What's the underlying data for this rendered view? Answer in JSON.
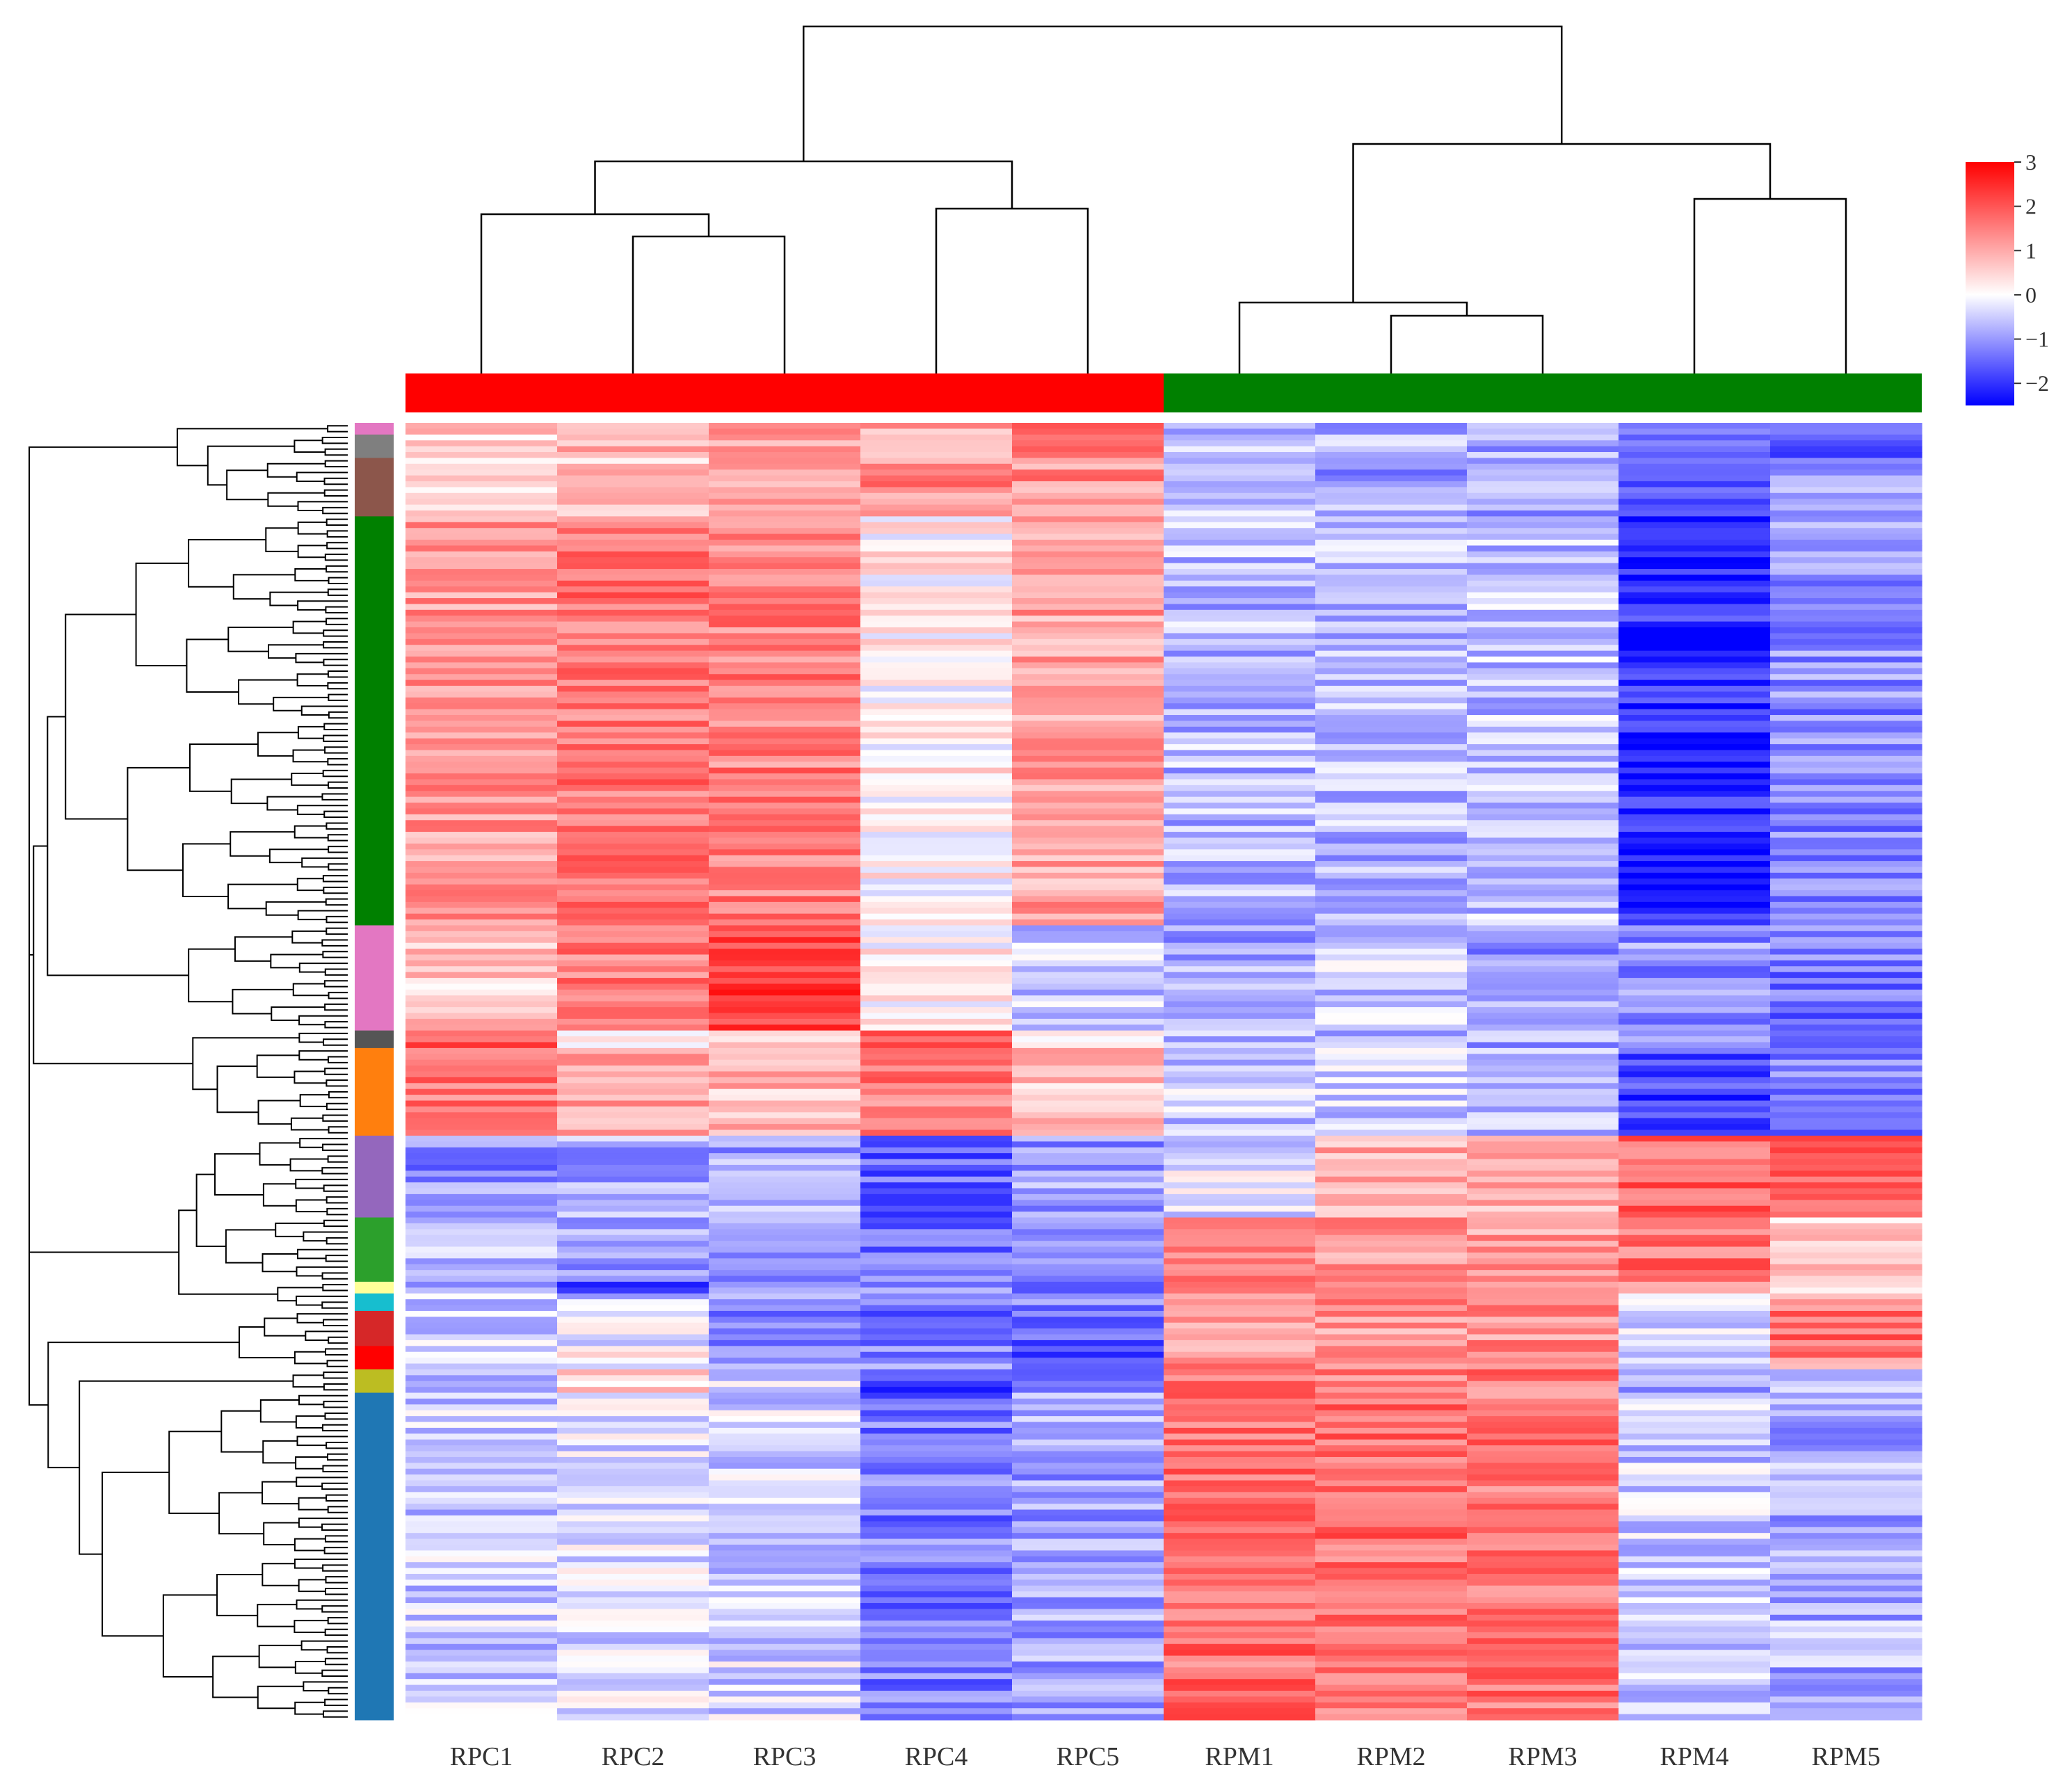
{
  "chart_data": {
    "type": "heatmap",
    "title": "",
    "columns": [
      "RPC1",
      "RPC2",
      "RPC3",
      "RPC4",
      "RPC5",
      "RPM1",
      "RPM2",
      "RPM3",
      "RPM4",
      "RPM5"
    ],
    "column_groups": [
      {
        "name": "RPC",
        "color": "#ff0000",
        "columns": [
          "RPC1",
          "RPC2",
          "RPC3",
          "RPC4",
          "RPC5"
        ]
      },
      {
        "name": "RPM",
        "color": "#008000",
        "columns": [
          "RPM1",
          "RPM2",
          "RPM3",
          "RPM4",
          "RPM5"
        ]
      }
    ],
    "colorbar": {
      "min": -2.5,
      "max": 3,
      "ticks": [
        3,
        2,
        1,
        0,
        -1,
        -2
      ],
      "tick_labels": [
        "3",
        "2",
        "1",
        "0",
        "−1",
        "−2"
      ],
      "low_color": "#0000ff",
      "mid_color": "#ffffff",
      "high_color": "#ff0000"
    },
    "row_clusters": [
      {
        "color": "#e377c2",
        "rows": 2,
        "profile": [
          0.8,
          0.9,
          1.2,
          0.9,
          1.8,
          -0.8,
          -0.9,
          -1.0,
          -1.6,
          -1.7
        ]
      },
      {
        "color": "#7f7f7f",
        "rows": 4,
        "profile": [
          0.5,
          0.9,
          1.1,
          0.9,
          1.9,
          -0.6,
          -0.8,
          -0.9,
          -1.5,
          -1.4
        ]
      },
      {
        "color": "#8c564b",
        "rows": 10,
        "profile": [
          0.4,
          0.6,
          1.2,
          1.4,
          1.3,
          -0.6,
          -0.9,
          -0.8,
          -1.7,
          -1.1
        ]
      },
      {
        "color": "#008000",
        "rows": 70,
        "profile": [
          1.2,
          1.6,
          1.5,
          0.2,
          1.1,
          -0.7,
          -0.7,
          -0.6,
          -2.1,
          -1.1
        ]
      },
      {
        "color": "#e377c2",
        "rows": 18,
        "profile": [
          0.6,
          1.5,
          2.4,
          0.2,
          -0.5,
          -0.9,
          -0.5,
          -1.0,
          -1.1,
          -1.3
        ]
      },
      {
        "color": "#555555",
        "rows": 3,
        "profile": [
          2.2,
          0.4,
          0.8,
          1.8,
          0.5,
          -0.7,
          -0.6,
          -0.9,
          -1.0,
          -1.3
        ]
      },
      {
        "color": "#ff7f0e",
        "rows": 15,
        "profile": [
          1.6,
          1.2,
          0.8,
          1.6,
          0.7,
          -0.5,
          -0.5,
          -0.8,
          -1.8,
          -1.2
        ]
      },
      {
        "color": "#9467bd",
        "rows": 14,
        "profile": [
          -1.1,
          -0.8,
          -0.9,
          -1.5,
          -1.0,
          -0.3,
          1.0,
          0.8,
          1.8,
          1.9
        ]
      },
      {
        "color": "#2ca02c",
        "rows": 11,
        "profile": [
          -0.8,
          -0.9,
          -1.2,
          -1.3,
          -1.2,
          1.4,
          1.3,
          1.2,
          1.6,
          0.7
        ]
      },
      {
        "color": "#ffff99",
        "rows": 2,
        "profile": [
          -0.6,
          -1.6,
          -0.6,
          -1.2,
          -1.4,
          1.5,
          1.5,
          1.5,
          0.6,
          0.3
        ]
      },
      {
        "color": "#17becf",
        "rows": 3,
        "profile": [
          -0.6,
          -0.4,
          -0.9,
          -1.0,
          -1.3,
          1.5,
          1.3,
          1.4,
          0.2,
          1.1
        ]
      },
      {
        "color": "#d62728",
        "rows": 6,
        "profile": [
          -0.5,
          -0.2,
          -1.2,
          -1.3,
          -1.6,
          1.2,
          1.2,
          1.3,
          -0.4,
          1.8
        ]
      },
      {
        "color": "#ff0000",
        "rows": 4,
        "profile": [
          -0.3,
          0.0,
          -1.0,
          -1.2,
          -1.9,
          1.3,
          1.2,
          1.2,
          -0.4,
          1.4
        ]
      },
      {
        "color": "#bcbd22",
        "rows": 4,
        "profile": [
          -1.0,
          0.6,
          -0.3,
          -1.8,
          -1.2,
          1.5,
          1.4,
          1.6,
          -0.9,
          -0.4
        ]
      },
      {
        "color": "#1f77b4",
        "rows": 56,
        "profile": [
          -0.5,
          -0.3,
          -0.4,
          -1.3,
          -0.9,
          1.7,
          1.7,
          1.6,
          -0.5,
          -0.8
        ]
      }
    ],
    "column_dendrogram": "RPC and RPM samples split into two main clades: ((RPC1,(RPC2,RPC3)),(RPC4,RPC5)) and ((RPM1,(RPM2,RPM3)),(RPM4,RPM5))",
    "row_dendrogram": "hierarchical clustering of genes"
  }
}
